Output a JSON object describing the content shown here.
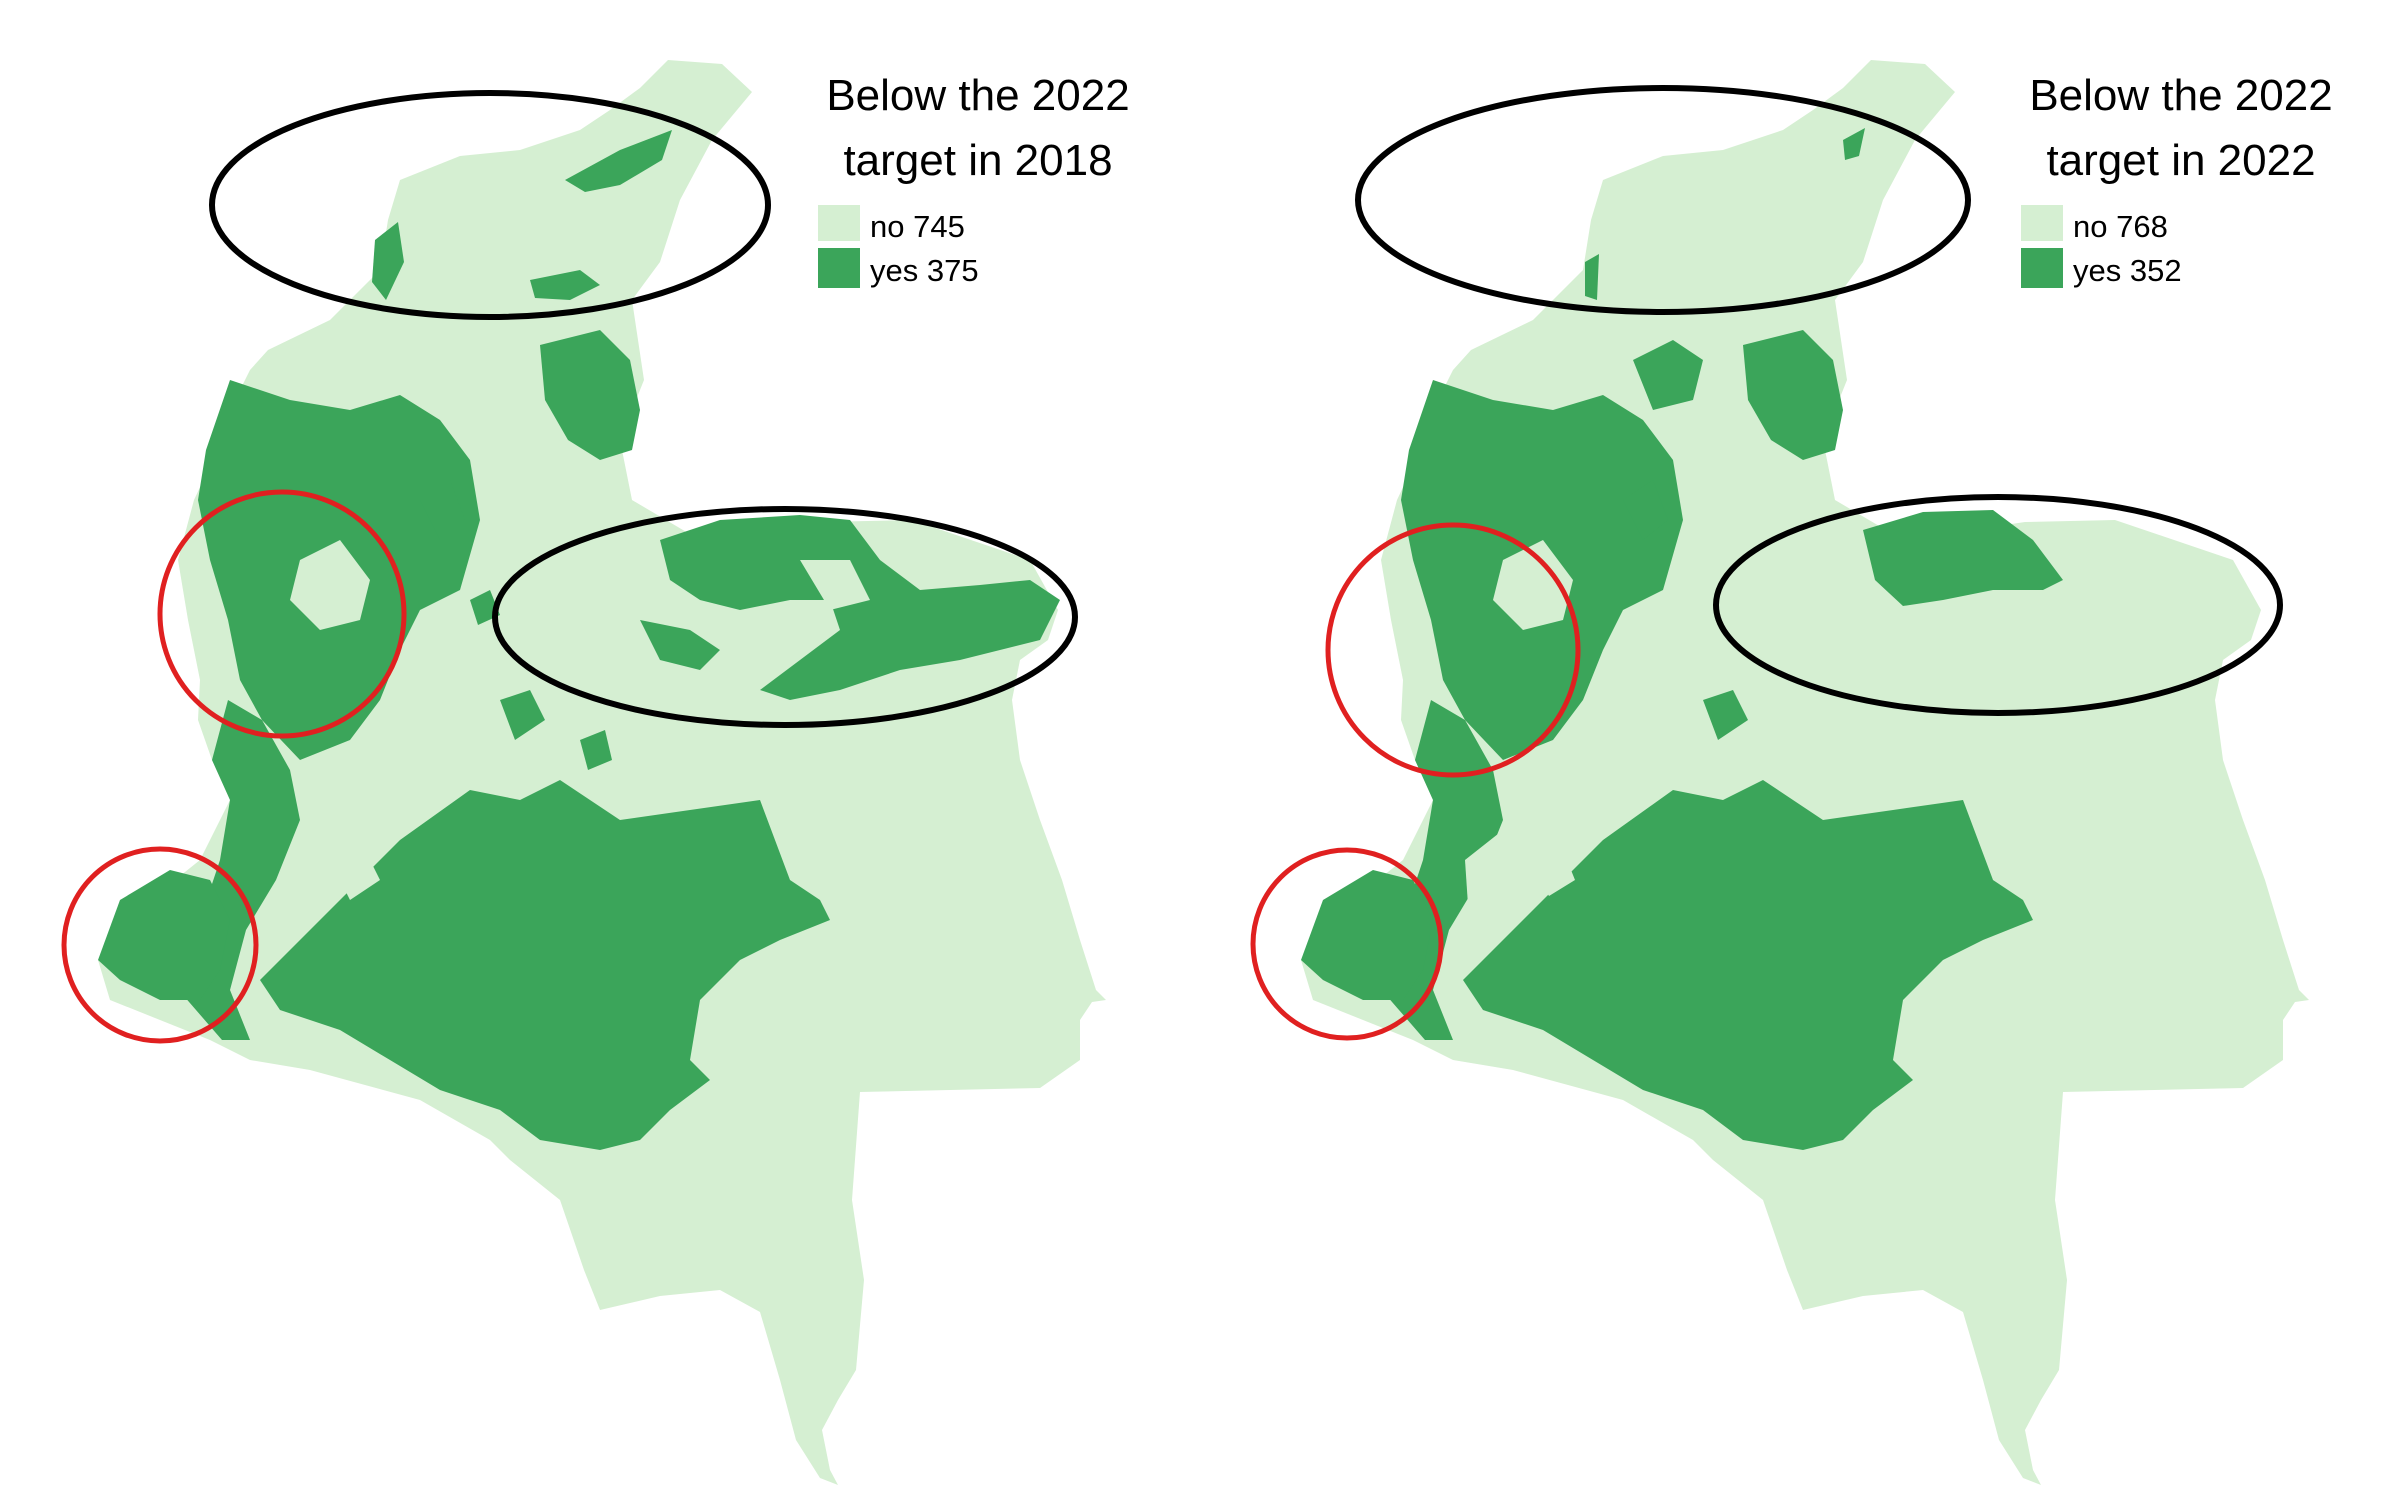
{
  "colors": {
    "no": "#d5efd2",
    "yes": "#3ba55a",
    "red_circle": "#e02020",
    "black_ellipse": "#000000",
    "background": "#ffffff"
  },
  "panels": [
    {
      "legend": {
        "title_line1": "Below the 2022",
        "title_line2": "target in 2018",
        "items": [
          {
            "key": "no",
            "label": "no 745",
            "count": 745
          },
          {
            "key": "yes",
            "label": "yes 375",
            "count": 375
          }
        ]
      },
      "annotations": {
        "black_ellipses": 2,
        "red_circles": 2
      }
    },
    {
      "legend": {
        "title_line1": "Below the 2022",
        "title_line2": "target in 2022",
        "items": [
          {
            "key": "no",
            "label": "no 768",
            "count": 768
          },
          {
            "key": "yes",
            "label": "yes 352",
            "count": 352
          }
        ]
      },
      "annotations": {
        "black_ellipses": 2,
        "red_circles": 2
      }
    }
  ]
}
